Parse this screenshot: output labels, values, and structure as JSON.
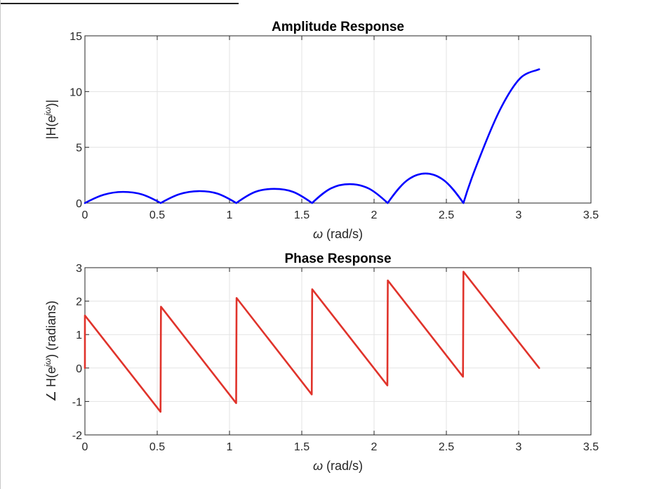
{
  "chart_data": [
    {
      "type": "line",
      "title": "Amplitude Response",
      "xlabel": "ω  (rad/s)",
      "ylabel": "|H(e^jω)|",
      "xlim": [
        0,
        3.5
      ],
      "ylim": [
        0,
        15
      ],
      "xticks": [
        "0",
        "0.5",
        "1",
        "1.5",
        "2",
        "2.5",
        "3",
        "3.5"
      ],
      "yticks": [
        "0",
        "5",
        "10",
        "15"
      ],
      "grid": true,
      "series": [
        {
          "color": "#0000ff",
          "x": [
            0,
            0.131,
            0.262,
            0.393,
            0.524,
            0.655,
            0.785,
            0.916,
            1.047,
            1.178,
            1.309,
            1.44,
            1.571,
            1.702,
            1.833,
            1.964,
            2.094,
            2.225,
            2.356,
            2.487,
            2.618,
            2.749,
            2.88,
            3.011,
            3.142
          ],
          "y": [
            0,
            0.75,
            1.0,
            0.78,
            0,
            0.8,
            1.07,
            0.85,
            0,
            1.0,
            1.27,
            1.0,
            0,
            1.32,
            1.7,
            1.3,
            0,
            2.0,
            2.65,
            2.0,
            0,
            4.7,
            8.6,
            11.2,
            12.0
          ]
        }
      ]
    },
    {
      "type": "line",
      "title": "Phase Response",
      "xlabel": "ω  (rad/s)",
      "ylabel": "∠ H(e^jω)  (radians)",
      "xlim": [
        0,
        3.5
      ],
      "ylim": [
        -2,
        3
      ],
      "xticks": [
        "0",
        "0.5",
        "1",
        "1.5",
        "2",
        "2.5",
        "3",
        "3.5"
      ],
      "yticks": [
        "-2",
        "-1",
        "0",
        "1",
        "2",
        "3"
      ],
      "grid": true,
      "series": [
        {
          "color": "#e0332b",
          "x": [
            0,
            0,
            0.523,
            0.526,
            1.046,
            1.049,
            1.569,
            1.572,
            2.092,
            2.095,
            2.615,
            2.618,
            3.142
          ],
          "y": [
            0,
            1.571,
            -1.31,
            1.833,
            -1.05,
            2.094,
            -0.79,
            2.356,
            -0.52,
            2.618,
            -0.26,
            2.88,
            0
          ]
        }
      ]
    }
  ]
}
